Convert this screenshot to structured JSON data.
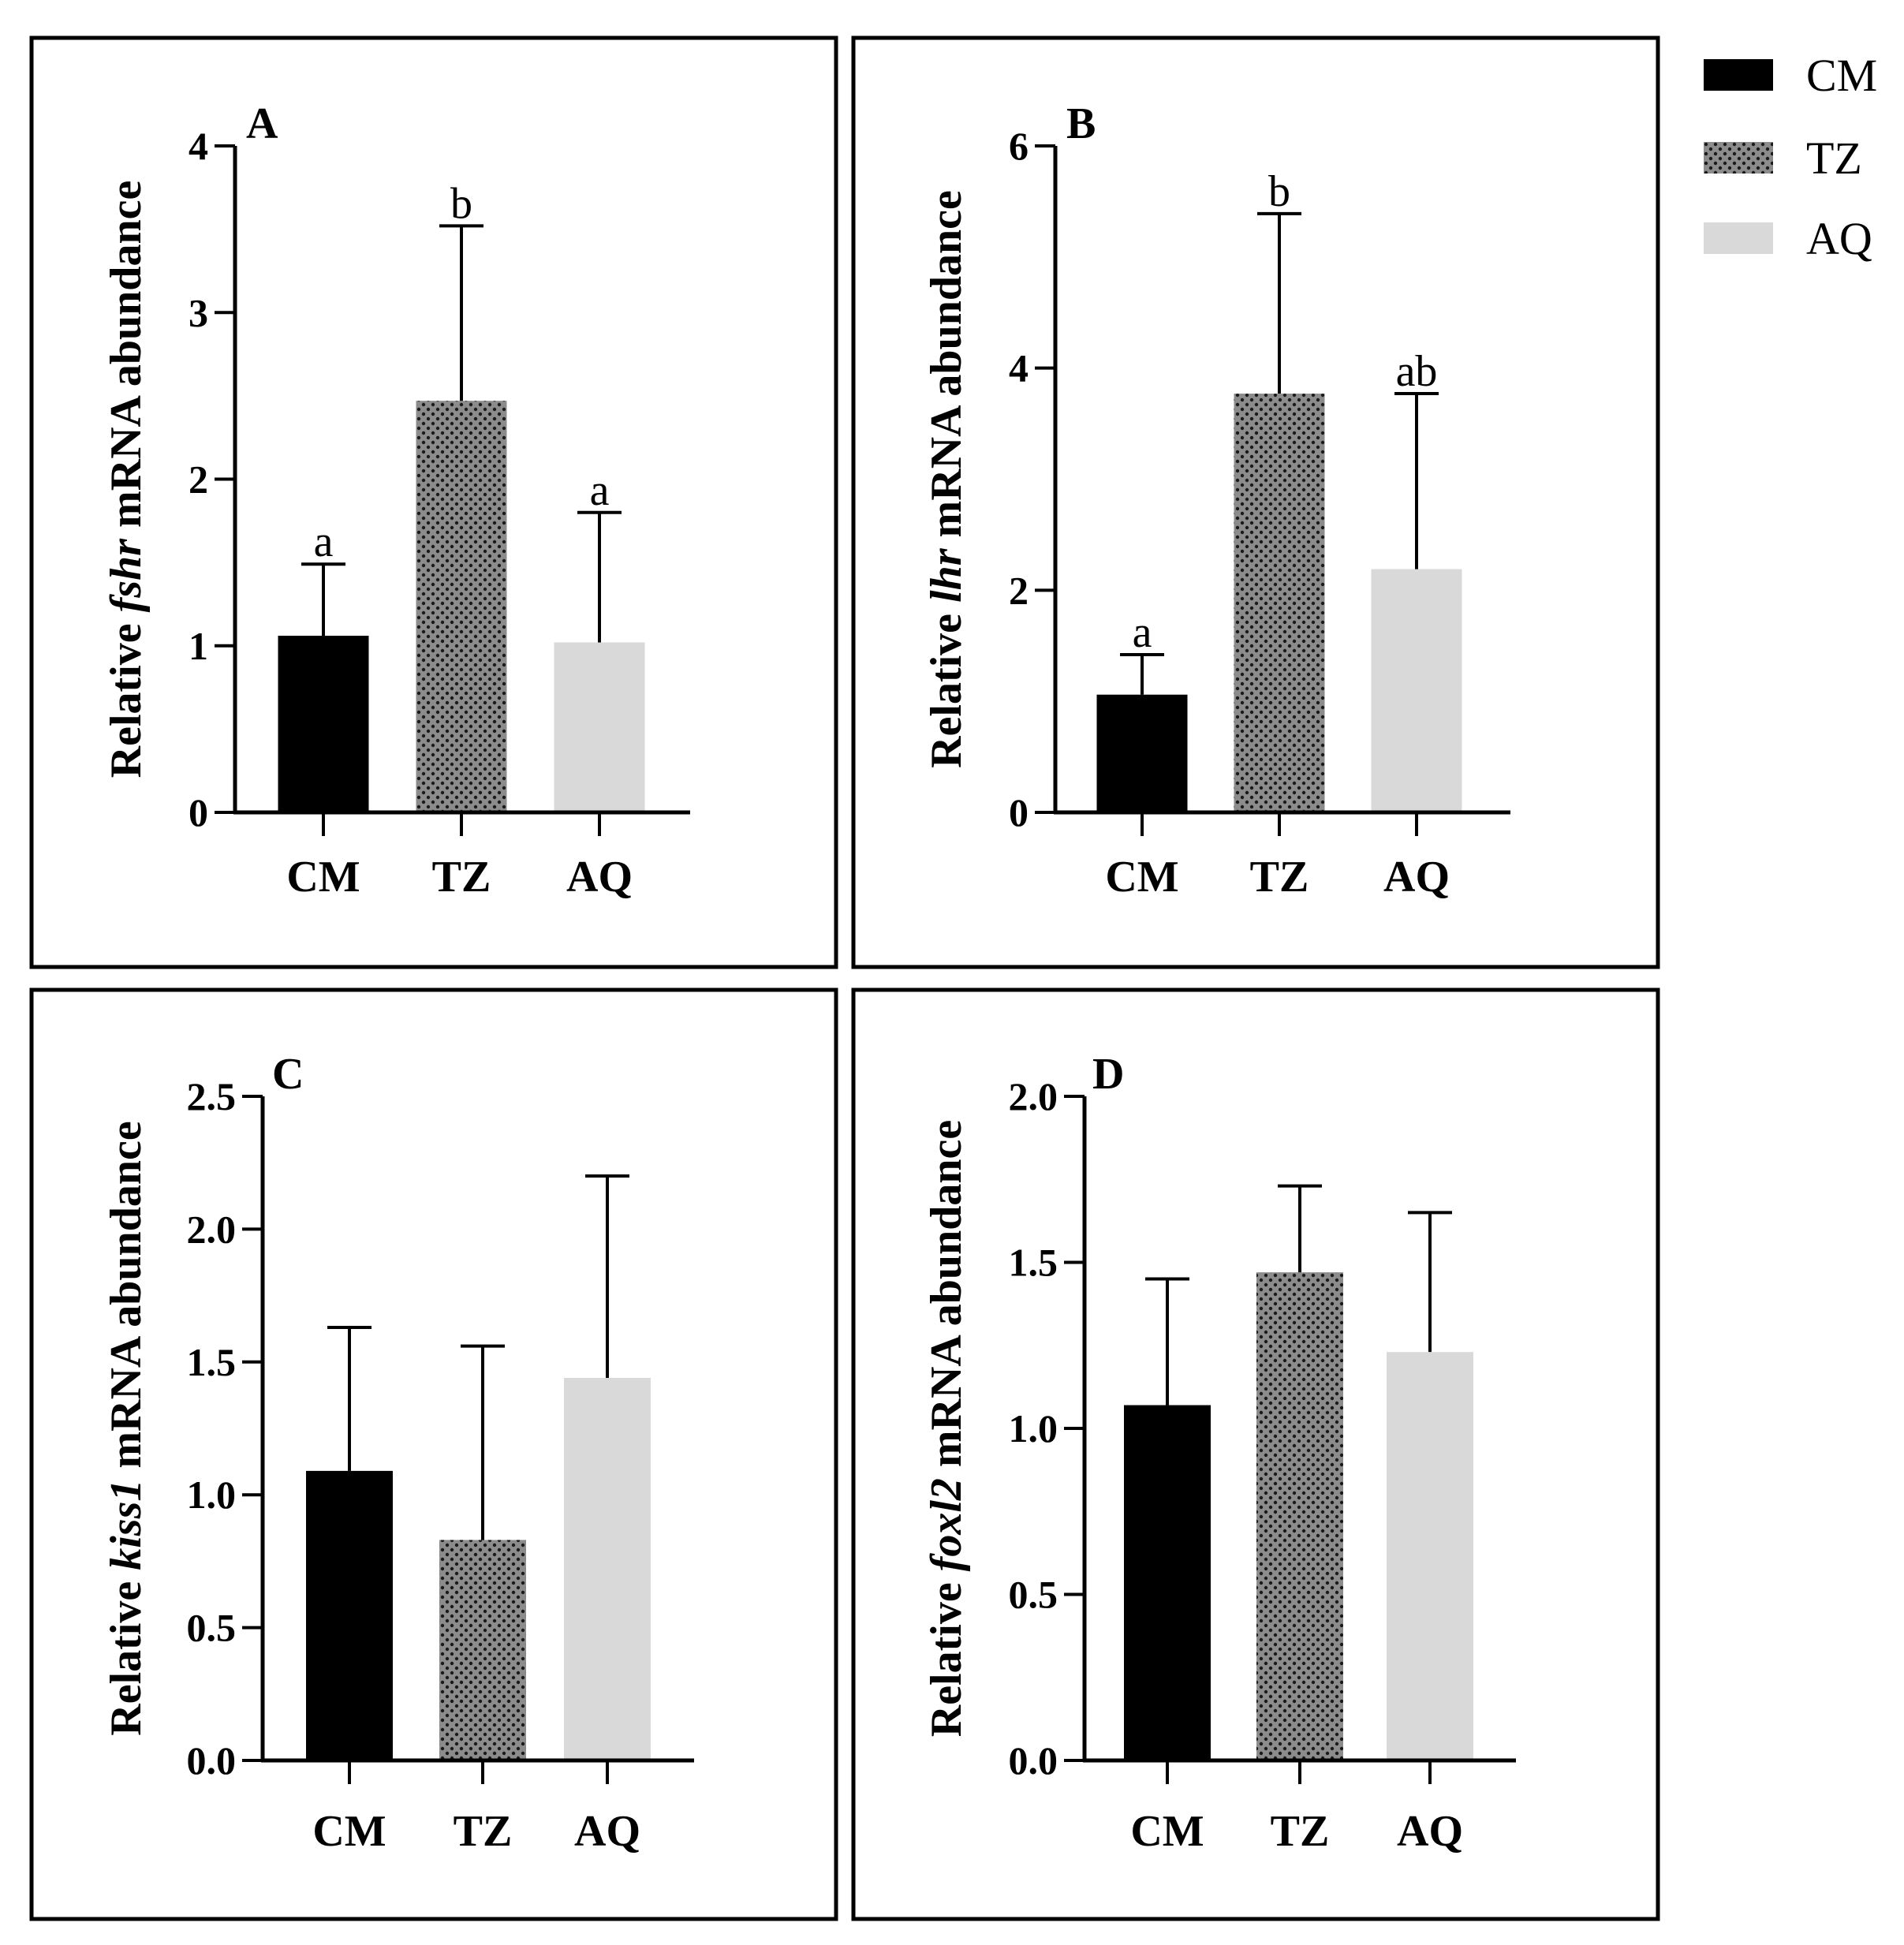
{
  "legend": {
    "items": [
      {
        "label": "CM",
        "fill": "solid",
        "color": "#000000"
      },
      {
        "label": "TZ",
        "fill": "dots",
        "color": "#8c8c8c"
      },
      {
        "label": "AQ",
        "fill": "solid",
        "color": "#d9d9d9"
      }
    ]
  },
  "colors": {
    "CM": "#000000",
    "TZ_base": "#8c8c8c",
    "TZ_dot": "#1a1a1a",
    "AQ": "#d9d9d9",
    "frame": "#000000"
  },
  "chart_data": [
    {
      "panel": "A",
      "type": "bar",
      "ylabel_prefix": "Relative ",
      "ylabel_gene": "fshr",
      "ylabel_suffix": " mRNA abundance",
      "categories": [
        "CM",
        "TZ",
        "AQ"
      ],
      "values": [
        1.06,
        2.47,
        1.02
      ],
      "error": [
        0.43,
        1.05,
        0.78
      ],
      "significance": [
        "a",
        "b",
        "a"
      ],
      "ylim": [
        0,
        4
      ],
      "yticks": [
        "0",
        "1",
        "2",
        "3",
        "4"
      ],
      "ytick_values": [
        0,
        1,
        2,
        3,
        4
      ]
    },
    {
      "panel": "B",
      "type": "bar",
      "ylabel_prefix": "Relative ",
      "ylabel_gene": "lhr",
      "ylabel_suffix": " mRNA abundance",
      "categories": [
        "CM",
        "TZ",
        "AQ"
      ],
      "values": [
        1.06,
        3.77,
        2.19
      ],
      "error": [
        0.36,
        1.62,
        1.58
      ],
      "significance": [
        "a",
        "b",
        "ab"
      ],
      "ylim": [
        0,
        6
      ],
      "yticks": [
        "0",
        "2",
        "4",
        "6"
      ],
      "ytick_values": [
        0,
        2,
        4,
        6
      ]
    },
    {
      "panel": "C",
      "type": "bar",
      "ylabel_prefix": "Relative ",
      "ylabel_gene": "kiss1",
      "ylabel_suffix": " mRNA abundance",
      "categories": [
        "CM",
        "TZ",
        "AQ"
      ],
      "values": [
        1.09,
        0.83,
        1.44
      ],
      "error": [
        0.54,
        0.73,
        0.76
      ],
      "significance": [
        "",
        "",
        ""
      ],
      "ylim": [
        0,
        2.5
      ],
      "yticks": [
        "0.0",
        "0.5",
        "1.0",
        "1.5",
        "2.0",
        "2.5"
      ],
      "ytick_values": [
        0,
        0.5,
        1.0,
        1.5,
        2.0,
        2.5
      ]
    },
    {
      "panel": "D",
      "type": "bar",
      "ylabel_prefix": "Relative ",
      "ylabel_gene": "foxl2",
      "ylabel_suffix": " mRNA abundance",
      "categories": [
        "CM",
        "TZ",
        "AQ"
      ],
      "values": [
        1.07,
        1.47,
        1.23
      ],
      "error": [
        0.38,
        0.26,
        0.42
      ],
      "significance": [
        "",
        "",
        ""
      ],
      "ylim": [
        0,
        2.0
      ],
      "yticks": [
        "0.0",
        "0.5",
        "1.0",
        "1.5",
        "2.0"
      ],
      "ytick_values": [
        0,
        0.5,
        1.0,
        1.5,
        2.0
      ]
    }
  ]
}
